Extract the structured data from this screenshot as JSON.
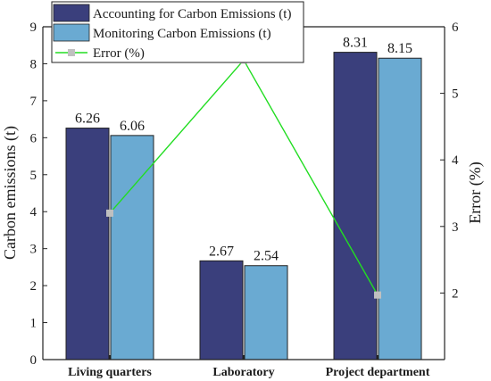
{
  "chart_data": {
    "type": "bar",
    "categories": [
      "Living quarters",
      "Laboratory",
      "Project department"
    ],
    "series": [
      {
        "name": "Accounting for Carbon Emissions (t)",
        "type": "bar",
        "axis": "left",
        "color": "#3a3f7c",
        "values": [
          6.26,
          2.67,
          8.31
        ]
      },
      {
        "name": "Monitoring Carbon Emissions (t)",
        "type": "bar",
        "axis": "left",
        "color": "#6aaad2",
        "values": [
          6.06,
          2.54,
          8.15
        ]
      },
      {
        "name": "Error (%)",
        "type": "line",
        "axis": "right",
        "color": "#22dd22",
        "marker_color": "#c0c0c0",
        "values": [
          3.2,
          5.5,
          1.97
        ]
      }
    ],
    "data_labels": [
      [
        "6.26",
        "2.67",
        "8.31"
      ],
      [
        "6.06",
        "2.54",
        "8.15"
      ]
    ],
    "ylabel": "Carbon emissions (t)",
    "y2label": "Error (%)",
    "ylim": [
      0,
      9
    ],
    "y2lim": [
      1,
      6
    ],
    "yticks": [
      "0",
      "1",
      "2",
      "3",
      "4",
      "5",
      "6",
      "7",
      "8",
      "9"
    ],
    "y2ticks": [
      "2",
      "3",
      "4",
      "5",
      "6"
    ],
    "legend_position": "top-left"
  }
}
